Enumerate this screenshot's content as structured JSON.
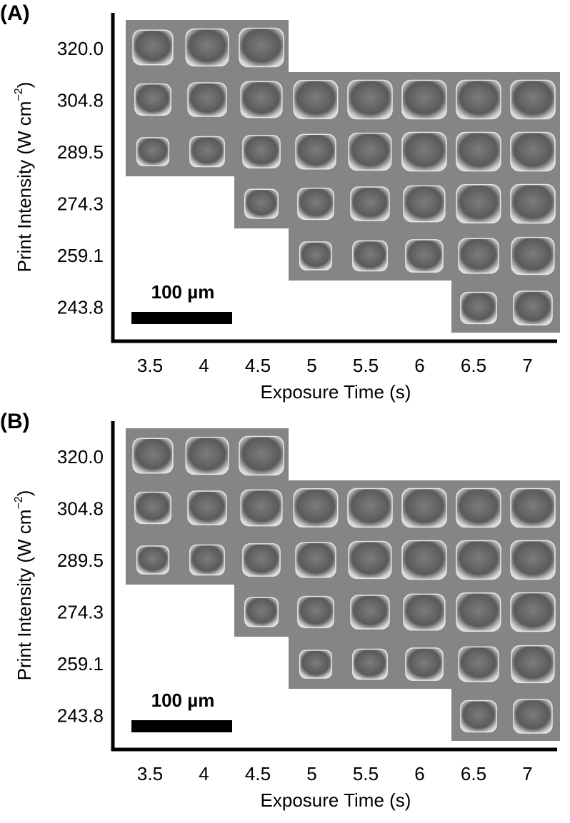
{
  "panels": [
    {
      "label": "(A)",
      "y_labels": [
        "320.0",
        "304.8",
        "289.5",
        "274.3",
        "259.1",
        "243.8"
      ],
      "x_labels": [
        "3.5",
        "4",
        "4.5",
        "5",
        "5.5",
        "6",
        "6.5",
        "7"
      ],
      "y_title": {
        "before": "Print Intensity (W cm",
        "sup": "−2",
        "after": ")"
      },
      "x_title": "Exposure Time (s)",
      "scale_bar": "100 µm"
    },
    {
      "label": "(B)",
      "y_labels": [
        "320.0",
        "304.8",
        "289.5",
        "274.3",
        "259.1",
        "243.8"
      ],
      "x_labels": [
        "3.5",
        "4",
        "4.5",
        "5",
        "5.5",
        "6",
        "6.5",
        "7"
      ],
      "y_title": {
        "before": "Print Intensity (W cm",
        "sup": "−2",
        "after": ")"
      },
      "x_title": "Exposure Time (s)",
      "scale_bar": "100 µm"
    }
  ]
}
